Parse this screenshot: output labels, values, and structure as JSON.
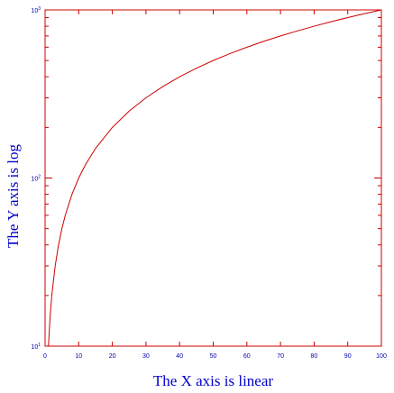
{
  "chart_data": {
    "type": "line",
    "title": "",
    "xlabel": "The X axis is linear",
    "ylabel": "The Y axis is log",
    "xscale": "linear",
    "yscale": "log",
    "xlim": [
      0,
      100
    ],
    "ylim": [
      10,
      1000
    ],
    "grid": false,
    "x_tick_labels": [
      "0",
      "10",
      "20",
      "30",
      "40",
      "50",
      "60",
      "70",
      "80",
      "90",
      "100"
    ],
    "y_tick_labels": [
      {
        "value": 10,
        "base": "10",
        "exp": "1"
      },
      {
        "value": 100,
        "base": "10",
        "exp": "2"
      },
      {
        "value": 1000,
        "base": "10",
        "exp": "3"
      }
    ],
    "series": [
      {
        "x": [
          1,
          1.5,
          2,
          3,
          4,
          5,
          6,
          8,
          10,
          12,
          15,
          20,
          25,
          30,
          35,
          40,
          45,
          50,
          55,
          60,
          65,
          70,
          75,
          80,
          85,
          90,
          95,
          100
        ],
        "y": [
          10,
          15,
          20,
          30,
          40,
          50,
          60,
          80,
          100,
          120,
          150,
          200,
          250,
          300,
          350,
          400,
          450,
          500,
          550,
          600,
          650,
          700,
          750,
          800,
          850,
          900,
          950,
          1000
        ]
      }
    ],
    "colors": {
      "frame": "#cc0000",
      "line": "#cc0000",
      "tick_labels": "#0000aa",
      "axis_titles": "#0000cc"
    }
  }
}
